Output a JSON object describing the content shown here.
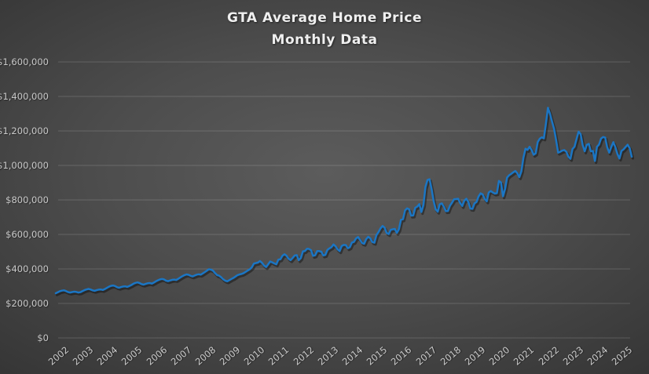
{
  "colors": {
    "background_center": "#5c5c5c",
    "background_edge": "#1f1f1f",
    "line": "#1b76c4",
    "line_shadow": "rgba(0,0,0,0.38)",
    "grid": "rgba(255,255,255,0.16)",
    "tick_label": "#c9c9c9",
    "title": "#efefef"
  },
  "chart_data": {
    "type": "line",
    "title": "GTA Average Home Price",
    "subtitle": "Monthly Data",
    "x_start": "2002-01",
    "x_interval": "month",
    "x_tick_labels": [
      "2002",
      "2003",
      "2004",
      "2005",
      "2006",
      "2007",
      "2008",
      "2009",
      "2010",
      "2011",
      "2012",
      "2013",
      "2014",
      "2015",
      "2016",
      "2017",
      "2018",
      "2019",
      "2020",
      "2021",
      "2022",
      "2023",
      "2024",
      "2025"
    ],
    "y_tick_values": [
      0,
      200000,
      400000,
      600000,
      800000,
      1000000,
      1200000,
      1400000,
      1600000
    ],
    "y_tick_labels": [
      "$0",
      "$200,000",
      "$400,000",
      "$600,000",
      "$800,000",
      "$1,000,000",
      "$1,200,000",
      "$1,400,000",
      "$1,600,000"
    ],
    "ylim": [
      0,
      1600000
    ],
    "grid": true,
    "legend_position": "none",
    "series": [
      {
        "name": "GTA Average Home Price",
        "color": "#1b76c4",
        "values": [
          259000,
          265000,
          271000,
          274000,
          276000,
          272000,
          266000,
          263000,
          266000,
          268000,
          267000,
          263000,
          265000,
          271000,
          277000,
          281000,
          284000,
          281000,
          276000,
          273000,
          277000,
          280000,
          281000,
          278000,
          283000,
          290000,
          297000,
          302000,
          304000,
          301000,
          294000,
          291000,
          295000,
          298000,
          299000,
          296000,
          301000,
          307000,
          314000,
          319000,
          322000,
          318000,
          312000,
          309000,
          313000,
          317000,
          318000,
          315000,
          321000,
          328000,
          334000,
          339000,
          342000,
          339000,
          332000,
          329000,
          333000,
          337000,
          338000,
          336000,
          343000,
          351000,
          358000,
          364000,
          368000,
          366000,
          360000,
          357000,
          362000,
          367000,
          369000,
          367000,
          374000,
          382000,
          390000,
          398000,
          396000,
          390000,
          376000,
          364000,
          361000,
          352000,
          340000,
          332000,
          328000,
          335000,
          342000,
          348000,
          356000,
          364000,
          368000,
          371000,
          376000,
          383000,
          391000,
          398000,
          409000,
          431000,
          434000,
          437000,
          446000,
          435000,
          420000,
          411000,
          427000,
          443000,
          438000,
          432000,
          427000,
          454000,
          456000,
          477000,
          485000,
          476000,
          459000,
          451000,
          464000,
          478000,
          480000,
          451000,
          463000,
          502000,
          504000,
          517000,
          516000,
          508000,
          476000,
          479000,
          503000,
          503000,
          500000,
          478000,
          482000,
          510000,
          519000,
          526000,
          542000,
          531000,
          513000,
          503000,
          533000,
          539000,
          538000,
          520000,
          526000,
          553000,
          557000,
          577000,
          585000,
          568000,
          550000,
          546000,
          573000,
          587000,
          577000,
          556000,
          552000,
          596000,
          613000,
          635000,
          649000,
          639000,
          609000,
          602000,
          627000,
          630000,
          632000,
          609000,
          630000,
          685000,
          688000,
          739000,
          751000,
          746000,
          709000,
          710000,
          755000,
          762000,
          776000,
          730000,
          770000,
          875000,
          916000,
          920000,
          863000,
          793000,
          746000,
          732000,
          775000,
          780000,
          761000,
          735000,
          736000,
          767000,
          784000,
          804000,
          805000,
          807000,
          782000,
          765000,
          796000,
          807000,
          788000,
          750000,
          748000,
          780000,
          788000,
          820000,
          838000,
          832000,
          806000,
          792000,
          843000,
          852000,
          843000,
          837000,
          839000,
          910000,
          902000,
          821000,
          863000,
          930000,
          943000,
          951000,
          960000,
          968000,
          955000,
          932000,
          967000,
          1045000,
          1097000,
          1090000,
          1108000,
          1089000,
          1062000,
          1070000,
          1136000,
          1155000,
          1163000,
          1157000,
          1242000,
          1334000,
          1299000,
          1254000,
          1212000,
          1146000,
          1074000,
          1079000,
          1086000,
          1089000,
          1079000,
          1051000,
          1038000,
          1095000,
          1108000,
          1153000,
          1196000,
          1182000,
          1118000,
          1082000,
          1119000,
          1125000,
          1082000,
          1084000,
          1026000,
          1108000,
          1121000,
          1156000,
          1165000,
          1162000,
          1106000,
          1074000,
          1107000,
          1135000,
          1106000,
          1067000,
          1040000,
          1084000,
          1093000,
          1107000,
          1120000,
          1101000,
          1051000
        ]
      }
    ]
  }
}
